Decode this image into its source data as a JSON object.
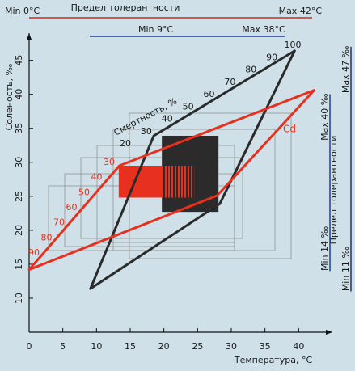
{
  "chart_data": {
    "type": "tolerance",
    "x_label": "Температура, °C",
    "y_label": "Соленость, ‰",
    "xlim": [
      0,
      45
    ],
    "ylim": [
      5,
      49
    ],
    "xticks": [
      0,
      5,
      10,
      15,
      20,
      25,
      30,
      35,
      40
    ],
    "yticks": [
      10,
      15,
      20,
      25,
      30,
      35,
      40,
      45
    ],
    "shapes": [
      {
        "color": "#2a2a2a",
        "x": [
          9.1,
          18.5,
          39.4,
          28.3
        ],
        "y": [
          11.4,
          33.9,
          46.4,
          23.9
        ]
      },
      {
        "label": "Cd",
        "color": "#e8301e",
        "x": [
          0,
          13.4,
          42.3,
          27.9
        ],
        "y": [
          14.2,
          29.5,
          40.6,
          25.1
        ]
      }
    ],
    "zones": [
      {
        "color": "#e8301e",
        "x": [
          13.3,
          19.7
        ],
        "y": [
          24.8,
          29.5
        ]
      },
      {
        "color": "#2b2b2b",
        "x": [
          19.7,
          28.1
        ],
        "y": [
          22.7,
          33.9
        ]
      },
      {
        "color": "#e8301e",
        "pattern": "stripes",
        "x": [
          19.7,
          24.5
        ],
        "y": [
          24.8,
          29.5
        ]
      }
    ],
    "mortality_label": "Смертность, %",
    "mortality_levels": [
      {
        "color": "#1a1a1a",
        "values": [
          20,
          30,
          40,
          50,
          60,
          70,
          80,
          90,
          100
        ]
      },
      {
        "color": "#e8301e",
        "values": [
          30,
          40,
          50,
          60,
          70,
          80,
          90
        ]
      }
    ],
    "temperature_tolerance": {
      "title": "Предел толерантности",
      "ranges": [
        {
          "min": 0,
          "max": 42,
          "min_label": "Min 0°C",
          "max_label": "Max 42°C",
          "color": "#d8281c"
        },
        {
          "min": 9,
          "max": 38,
          "min_label": "Min 9°C",
          "max_label": "Max 38°C",
          "color": "#1f3f9a"
        }
      ]
    },
    "salinity_tolerance": {
      "title": "Предел толерантности",
      "ranges": [
        {
          "min": 14,
          "max": 40,
          "min_label": "Min 14 ‰",
          "max_label": "Max 40 ‰",
          "color": "#1f3f9a"
        },
        {
          "min": 11,
          "max": 47,
          "min_label": "Min 11 ‰",
          "max_label": "Max 47 ‰",
          "color": "#2a2a6a"
        }
      ]
    }
  }
}
